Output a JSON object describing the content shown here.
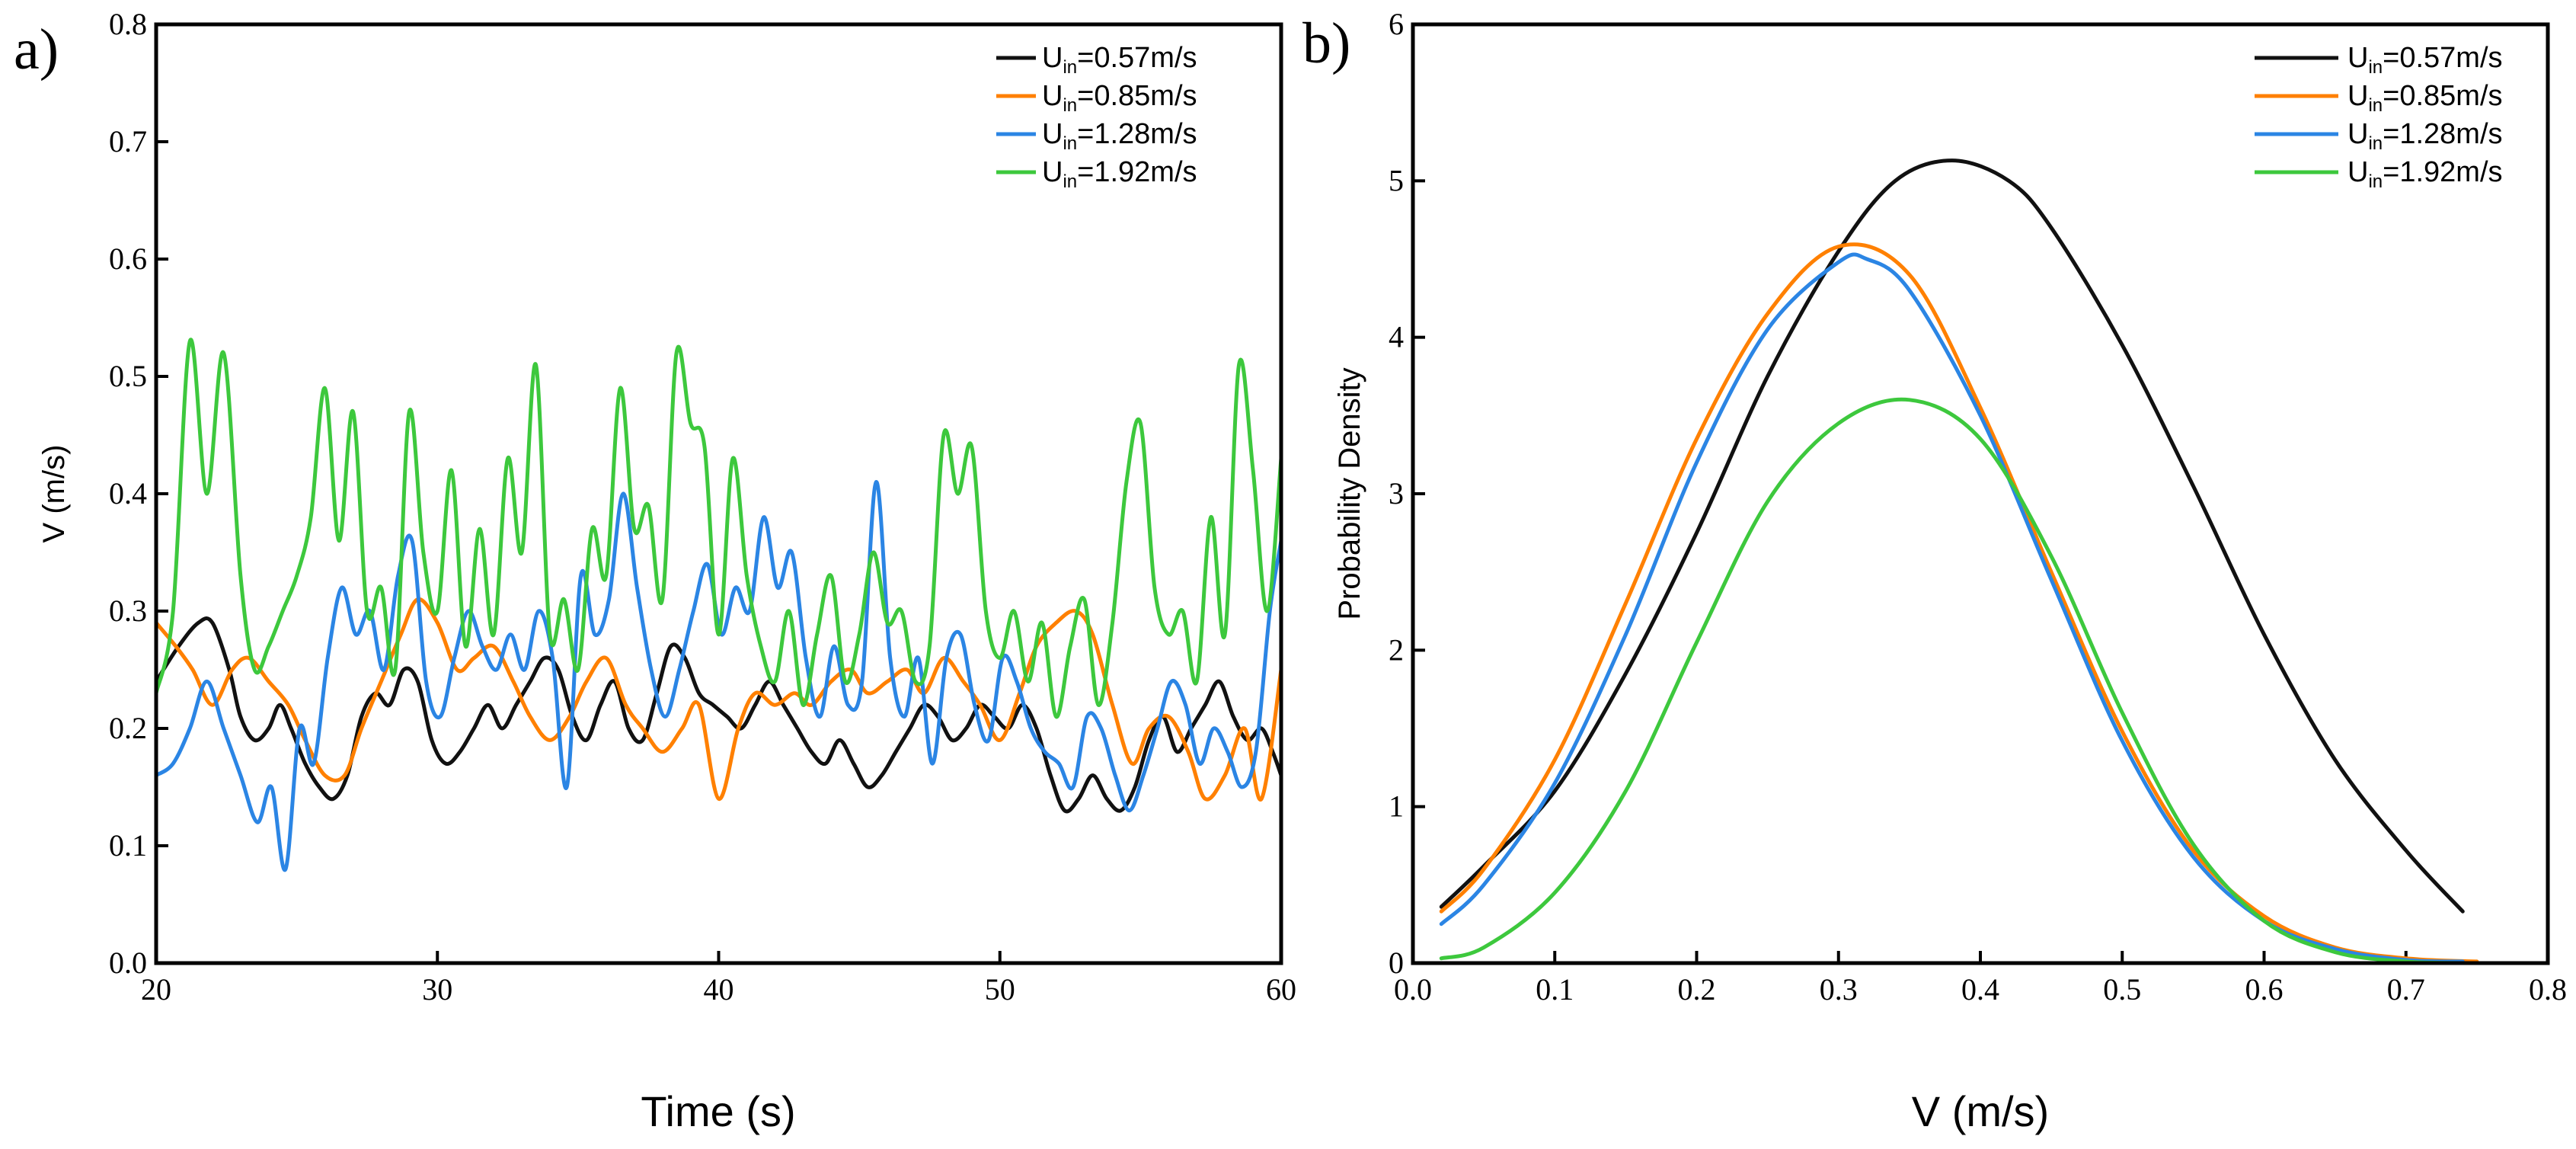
{
  "panels": {
    "a": {
      "label": "a)"
    },
    "b": {
      "label": "b)"
    }
  },
  "legend_text": {
    "prefix": "U",
    "subscript": "in",
    "unit": "m/s"
  },
  "colors": {
    "series_0": "#111111",
    "series_1": "#ff8000",
    "series_2": "#2b85e4",
    "series_3": "#3dc83d",
    "axis": "#000000"
  },
  "chart_data": [
    {
      "type": "line",
      "panel": "a",
      "title": "",
      "xlabel": "Time  (s)",
      "ylabel": "V  (m/s)",
      "xlim": [
        20,
        60
      ],
      "ylim": [
        0,
        0.8
      ],
      "xticks": [
        "20",
        "30",
        "40",
        "50",
        "60"
      ],
      "yticks": [
        "0.0",
        "0.1",
        "0.2",
        "0.3",
        "0.4",
        "0.5",
        "0.6",
        "0.7",
        "0.8"
      ],
      "xtick_values": [
        20,
        30,
        40,
        50,
        60
      ],
      "ytick_values": [
        0,
        0.1,
        0.2,
        0.3,
        0.4,
        0.5,
        0.6,
        0.7,
        0.8
      ],
      "legend_position": "top-right",
      "series": [
        {
          "name": "Uin=0.57m/s",
          "legend_value": "0.57",
          "color": "#111111",
          "x": [
            20,
            20.8,
            21.5,
            22,
            22.6,
            23,
            23.5,
            24,
            24.4,
            24.8,
            25.3,
            25.8,
            26.3,
            26.8,
            27.3,
            27.8,
            28.3,
            28.8,
            29.3,
            29.8,
            30.3,
            30.8,
            31.3,
            31.8,
            32.3,
            32.8,
            33.3,
            33.8,
            34.3,
            34.8,
            35.3,
            35.8,
            36.3,
            36.8,
            37.3,
            37.8,
            38.3,
            38.8,
            39.3,
            39.8,
            40.3,
            40.8,
            41.3,
            41.8,
            42.3,
            42.8,
            43.3,
            43.8,
            44.3,
            44.8,
            45.3,
            45.8,
            46.3,
            46.8,
            47.3,
            47.8,
            48.3,
            48.8,
            49.3,
            49.8,
            50.3,
            50.8,
            51.3,
            51.8,
            52.3,
            52.8,
            53.3,
            53.8,
            54.3,
            54.8,
            55.3,
            55.8,
            56.3,
            56.8,
            57.3,
            57.8,
            58.3,
            58.8,
            59.3,
            59.7,
            60
          ],
          "y": [
            0.24,
            0.27,
            0.29,
            0.29,
            0.25,
            0.21,
            0.19,
            0.2,
            0.22,
            0.2,
            0.17,
            0.15,
            0.14,
            0.16,
            0.21,
            0.23,
            0.22,
            0.25,
            0.24,
            0.19,
            0.17,
            0.18,
            0.2,
            0.22,
            0.2,
            0.22,
            0.24,
            0.26,
            0.25,
            0.21,
            0.19,
            0.22,
            0.24,
            0.2,
            0.19,
            0.23,
            0.27,
            0.26,
            0.23,
            0.22,
            0.21,
            0.2,
            0.22,
            0.24,
            0.22,
            0.2,
            0.18,
            0.17,
            0.19,
            0.17,
            0.15,
            0.16,
            0.18,
            0.2,
            0.22,
            0.21,
            0.19,
            0.2,
            0.22,
            0.21,
            0.2,
            0.22,
            0.2,
            0.16,
            0.13,
            0.14,
            0.16,
            0.14,
            0.13,
            0.15,
            0.19,
            0.21,
            0.18,
            0.2,
            0.22,
            0.24,
            0.21,
            0.19,
            0.2,
            0.18,
            0.16
          ]
        },
        {
          "name": "Uin=0.85m/s",
          "legend_value": "0.85",
          "color": "#ff8000",
          "x": [
            20,
            20.7,
            21.3,
            22,
            22.7,
            23.3,
            24,
            24.7,
            25.3,
            26,
            26.7,
            27.3,
            28,
            28.7,
            29.3,
            30,
            30.7,
            31.3,
            32,
            32.7,
            33.3,
            34,
            34.7,
            35.3,
            36,
            36.7,
            37.3,
            38,
            38.7,
            39.3,
            40,
            40.7,
            41.3,
            42,
            42.7,
            43.3,
            44,
            44.7,
            45.3,
            46,
            46.7,
            47.3,
            48,
            48.7,
            49.3,
            50,
            50.7,
            51.3,
            52,
            52.7,
            53.3,
            54,
            54.7,
            55.3,
            56,
            56.7,
            57.3,
            58,
            58.7,
            59.3,
            60
          ],
          "y": [
            0.29,
            0.27,
            0.25,
            0.22,
            0.25,
            0.26,
            0.24,
            0.22,
            0.19,
            0.16,
            0.16,
            0.2,
            0.24,
            0.28,
            0.31,
            0.29,
            0.25,
            0.26,
            0.27,
            0.24,
            0.21,
            0.19,
            0.21,
            0.24,
            0.26,
            0.22,
            0.2,
            0.18,
            0.2,
            0.22,
            0.14,
            0.2,
            0.23,
            0.22,
            0.23,
            0.22,
            0.24,
            0.25,
            0.23,
            0.24,
            0.25,
            0.23,
            0.26,
            0.24,
            0.22,
            0.19,
            0.23,
            0.27,
            0.29,
            0.3,
            0.28,
            0.22,
            0.17,
            0.2,
            0.21,
            0.18,
            0.14,
            0.16,
            0.2,
            0.14,
            0.25
          ]
        },
        {
          "name": "Uin=1.28m/s",
          "legend_value": "1.28",
          "color": "#2b85e4",
          "x": [
            20,
            20.6,
            21.2,
            21.8,
            22.4,
            23,
            23.6,
            24.1,
            24.6,
            25.1,
            25.6,
            26.1,
            26.6,
            27.1,
            27.6,
            28.1,
            28.6,
            29.1,
            29.6,
            30.1,
            30.6,
            31.1,
            31.6,
            32.1,
            32.6,
            33.1,
            33.6,
            34.1,
            34.6,
            35.1,
            35.6,
            36.1,
            36.6,
            37.1,
            37.6,
            38.1,
            38.6,
            39.1,
            39.6,
            40.1,
            40.6,
            41.1,
            41.6,
            42.1,
            42.6,
            43.1,
            43.6,
            44.1,
            44.6,
            45.1,
            45.6,
            46.1,
            46.6,
            47.1,
            47.6,
            48.1,
            48.6,
            49.1,
            49.6,
            50.1,
            50.6,
            51.1,
            51.6,
            52.1,
            52.6,
            53.1,
            53.6,
            54.1,
            54.6,
            55.1,
            55.6,
            56.1,
            56.6,
            57.1,
            57.6,
            58.1,
            58.6,
            59.1,
            59.6,
            60
          ],
          "y": [
            0.16,
            0.17,
            0.2,
            0.24,
            0.2,
            0.16,
            0.12,
            0.15,
            0.08,
            0.2,
            0.17,
            0.26,
            0.32,
            0.28,
            0.3,
            0.25,
            0.33,
            0.36,
            0.24,
            0.21,
            0.26,
            0.3,
            0.27,
            0.25,
            0.28,
            0.25,
            0.3,
            0.26,
            0.15,
            0.33,
            0.28,
            0.31,
            0.4,
            0.32,
            0.25,
            0.21,
            0.25,
            0.3,
            0.34,
            0.28,
            0.32,
            0.3,
            0.38,
            0.32,
            0.35,
            0.26,
            0.21,
            0.27,
            0.22,
            0.24,
            0.41,
            0.26,
            0.21,
            0.26,
            0.17,
            0.26,
            0.28,
            0.22,
            0.19,
            0.26,
            0.24,
            0.2,
            0.18,
            0.17,
            0.15,
            0.21,
            0.2,
            0.16,
            0.13,
            0.16,
            0.2,
            0.24,
            0.22,
            0.17,
            0.2,
            0.18,
            0.15,
            0.18,
            0.3,
            0.36
          ]
        },
        {
          "name": "Uin=1.92m/s",
          "legend_value": "1.92",
          "color": "#3dc83d",
          "x": [
            20,
            20.6,
            21.2,
            21.8,
            22.4,
            23,
            23.5,
            24,
            24.5,
            25,
            25.5,
            26,
            26.5,
            27,
            27.5,
            28,
            28.5,
            29,
            29.5,
            30,
            30.5,
            31,
            31.5,
            32,
            32.5,
            33,
            33.5,
            34,
            34.5,
            35,
            35.5,
            36,
            36.5,
            37,
            37.5,
            38,
            38.5,
            39,
            39.5,
            40,
            40.5,
            41,
            41.5,
            42,
            42.5,
            43,
            43.5,
            44,
            44.5,
            45,
            45.5,
            46,
            46.5,
            47,
            47.5,
            48,
            48.5,
            49,
            49.5,
            50,
            50.5,
            51,
            51.5,
            52,
            52.5,
            53,
            53.5,
            54,
            54.5,
            55,
            55.5,
            56,
            56.5,
            57,
            57.5,
            58,
            58.5,
            59,
            59.5,
            60
          ],
          "y": [
            0.23,
            0.3,
            0.53,
            0.4,
            0.52,
            0.33,
            0.25,
            0.27,
            0.3,
            0.33,
            0.38,
            0.49,
            0.36,
            0.47,
            0.3,
            0.32,
            0.25,
            0.47,
            0.35,
            0.3,
            0.42,
            0.27,
            0.37,
            0.28,
            0.43,
            0.35,
            0.51,
            0.28,
            0.31,
            0.25,
            0.37,
            0.33,
            0.49,
            0.37,
            0.39,
            0.31,
            0.52,
            0.46,
            0.44,
            0.28,
            0.43,
            0.33,
            0.27,
            0.24,
            0.3,
            0.22,
            0.28,
            0.33,
            0.24,
            0.28,
            0.35,
            0.29,
            0.3,
            0.24,
            0.27,
            0.45,
            0.4,
            0.44,
            0.3,
            0.26,
            0.3,
            0.24,
            0.29,
            0.21,
            0.27,
            0.31,
            0.22,
            0.29,
            0.41,
            0.46,
            0.32,
            0.28,
            0.3,
            0.24,
            0.38,
            0.28,
            0.51,
            0.42,
            0.3,
            0.43
          ]
        }
      ]
    },
    {
      "type": "line",
      "panel": "b",
      "title": "",
      "xlabel": "V  (m/s)",
      "ylabel": "Probability Density",
      "xlim": [
        0,
        0.8
      ],
      "ylim": [
        0,
        6
      ],
      "xticks": [
        "0.0",
        "0.1",
        "0.2",
        "0.3",
        "0.4",
        "0.5",
        "0.6",
        "0.7",
        "0.8"
      ],
      "yticks": [
        "0",
        "1",
        "2",
        "3",
        "4",
        "5",
        "6"
      ],
      "xtick_values": [
        0,
        0.1,
        0.2,
        0.3,
        0.4,
        0.5,
        0.6,
        0.7,
        0.8
      ],
      "ytick_values": [
        0,
        1,
        2,
        3,
        4,
        5,
        6
      ],
      "legend_position": "top-right",
      "series": [
        {
          "name": "Uin=0.57m/s",
          "legend_value": "0.57",
          "color": "#111111",
          "x": [
            0.02,
            0.05,
            0.1,
            0.15,
            0.2,
            0.25,
            0.3,
            0.34,
            0.38,
            0.42,
            0.45,
            0.5,
            0.55,
            0.6,
            0.65,
            0.7,
            0.74
          ],
          "y": [
            0.36,
            0.62,
            1.1,
            1.85,
            2.75,
            3.75,
            4.55,
            5.0,
            5.13,
            5.0,
            4.7,
            3.95,
            3.05,
            2.1,
            1.3,
            0.72,
            0.33
          ]
        },
        {
          "name": "Uin=0.85m/s",
          "legend_value": "0.85",
          "color": "#ff8000",
          "x": [
            0.02,
            0.05,
            0.1,
            0.15,
            0.2,
            0.25,
            0.3,
            0.35,
            0.4,
            0.45,
            0.5,
            0.55,
            0.6,
            0.65,
            0.7,
            0.75
          ],
          "y": [
            0.33,
            0.6,
            1.3,
            2.3,
            3.35,
            4.15,
            4.58,
            4.4,
            3.55,
            2.5,
            1.48,
            0.72,
            0.3,
            0.1,
            0.03,
            0.01
          ]
        },
        {
          "name": "Uin=1.28m/s",
          "legend_value": "1.28",
          "color": "#2b85e4",
          "x": [
            0.02,
            0.05,
            0.1,
            0.15,
            0.2,
            0.25,
            0.3,
            0.32,
            0.35,
            0.4,
            0.45,
            0.5,
            0.55,
            0.6,
            0.65,
            0.7,
            0.74
          ],
          "y": [
            0.25,
            0.5,
            1.15,
            2.1,
            3.2,
            4.05,
            4.48,
            4.5,
            4.3,
            3.5,
            2.45,
            1.42,
            0.68,
            0.27,
            0.09,
            0.02,
            0.01
          ]
        },
        {
          "name": "Uin=1.92m/s",
          "legend_value": "1.92",
          "color": "#3dc83d",
          "x": [
            0.02,
            0.05,
            0.1,
            0.15,
            0.2,
            0.25,
            0.3,
            0.35,
            0.4,
            0.45,
            0.5,
            0.55,
            0.6,
            0.65,
            0.7,
            0.74
          ],
          "y": [
            0.03,
            0.1,
            0.45,
            1.1,
            2.05,
            2.95,
            3.45,
            3.6,
            3.35,
            2.6,
            1.6,
            0.76,
            0.27,
            0.07,
            0.01,
            0.0
          ]
        }
      ]
    }
  ]
}
